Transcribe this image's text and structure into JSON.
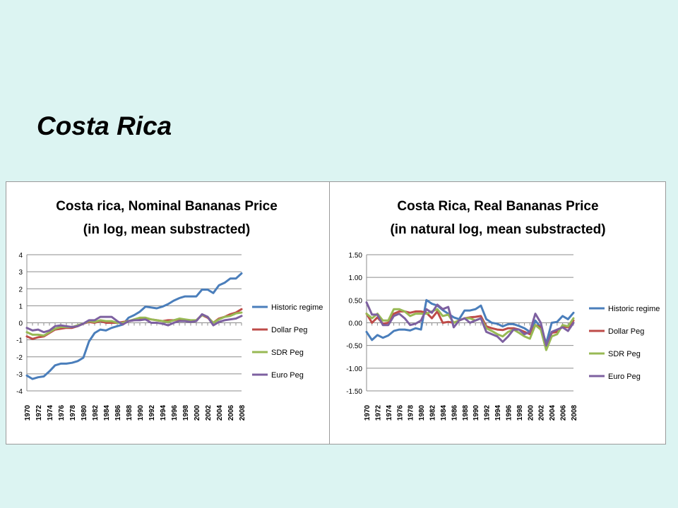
{
  "slide": {
    "title": "Costa Rica"
  },
  "chart_data": [
    {
      "type": "line",
      "title": "Costa rica, Nominal Bananas Price",
      "subtitle": "(in log, mean substracted)",
      "xlabel": "",
      "ylabel": "",
      "ylim": [
        -4,
        4
      ],
      "yticks": [
        4,
        3,
        2,
        1,
        0,
        -1,
        -2,
        -3,
        -4
      ],
      "ytick_labels": [
        "4",
        "3",
        "2",
        "1",
        "0",
        "-1",
        "-2",
        "-3",
        "-4"
      ],
      "x": [
        1970,
        1971,
        1972,
        1973,
        1974,
        1975,
        1976,
        1977,
        1978,
        1979,
        1980,
        1981,
        1982,
        1983,
        1984,
        1985,
        1986,
        1987,
        1988,
        1989,
        1990,
        1991,
        1992,
        1993,
        1994,
        1995,
        1996,
        1997,
        1998,
        1999,
        2000,
        2001,
        2002,
        2003,
        2004,
        2005,
        2006,
        2007,
        2008
      ],
      "xtick_labels": [
        "1970",
        "1972",
        "1974",
        "1976",
        "1978",
        "1980",
        "1982",
        "1984",
        "1986",
        "1988",
        "1990",
        "1992",
        "1994",
        "1996",
        "1998",
        "2000",
        "2002",
        "2004",
        "2006",
        "2008"
      ],
      "grid": "horizontal",
      "legend_position": "right",
      "series": [
        {
          "name": "Historic regime",
          "color": "#4a7ebb",
          "values": [
            -3.1,
            -3.3,
            -3.2,
            -3.15,
            -2.85,
            -2.5,
            -2.4,
            -2.4,
            -2.35,
            -2.25,
            -2.05,
            -1.1,
            -0.6,
            -0.4,
            -0.45,
            -0.3,
            -0.2,
            -0.1,
            0.3,
            0.45,
            0.65,
            0.95,
            0.9,
            0.85,
            0.95,
            1.1,
            1.3,
            1.45,
            1.55,
            1.55,
            1.55,
            1.95,
            1.95,
            1.75,
            2.2,
            2.35,
            2.6,
            2.6,
            2.9
          ]
        },
        {
          "name": "Dollar Peg",
          "color": "#be4b48",
          "values": [
            -0.8,
            -0.95,
            -0.85,
            -0.8,
            -0.6,
            -0.4,
            -0.35,
            -0.3,
            -0.3,
            -0.2,
            -0.05,
            0.05,
            0.0,
            0.1,
            0.0,
            0.0,
            0.0,
            0.05,
            0.1,
            0.15,
            0.2,
            0.25,
            0.2,
            0.15,
            0.1,
            0.15,
            0.15,
            0.2,
            0.15,
            0.1,
            0.15,
            0.45,
            0.3,
            0.0,
            0.25,
            0.35,
            0.5,
            0.6,
            0.8
          ]
        },
        {
          "name": "SDR Peg",
          "color": "#98b954",
          "values": [
            -0.55,
            -0.7,
            -0.7,
            -0.75,
            -0.55,
            -0.35,
            -0.25,
            -0.25,
            -0.25,
            -0.15,
            -0.05,
            0.1,
            0.05,
            0.15,
            0.1,
            0.1,
            0.0,
            0.0,
            0.1,
            0.2,
            0.3,
            0.3,
            0.2,
            0.15,
            0.1,
            0.05,
            0.15,
            0.25,
            0.2,
            0.15,
            0.15,
            0.45,
            0.35,
            0.0,
            0.2,
            0.35,
            0.4,
            0.55,
            0.6
          ]
        },
        {
          "name": "Euro Peg",
          "color": "#7d60a0",
          "values": [
            -0.3,
            -0.45,
            -0.4,
            -0.55,
            -0.45,
            -0.2,
            -0.15,
            -0.2,
            -0.25,
            -0.2,
            -0.05,
            0.15,
            0.15,
            0.35,
            0.35,
            0.35,
            0.1,
            -0.1,
            0.1,
            0.15,
            0.15,
            0.2,
            0.0,
            0.0,
            -0.05,
            -0.15,
            0.0,
            0.1,
            0.1,
            0.05,
            0.1,
            0.5,
            0.35,
            -0.15,
            0.05,
            0.15,
            0.2,
            0.25,
            0.4
          ]
        }
      ]
    },
    {
      "type": "line",
      "title": "Costa Rica, Real Bananas Price",
      "subtitle": "(in natural log, mean substracted)",
      "xlabel": "",
      "ylabel": "",
      "ylim": [
        -1.5,
        1.5
      ],
      "yticks": [
        1.5,
        1.0,
        0.5,
        0.0,
        -0.5,
        -1.0,
        -1.5
      ],
      "ytick_labels": [
        "1.50",
        "1.00",
        "0.50",
        "0.00",
        "-0.50",
        "-1.00",
        "-1.50"
      ],
      "x": [
        1970,
        1971,
        1972,
        1973,
        1974,
        1975,
        1976,
        1977,
        1978,
        1979,
        1980,
        1981,
        1982,
        1983,
        1984,
        1985,
        1986,
        1987,
        1988,
        1989,
        1990,
        1991,
        1992,
        1993,
        1994,
        1995,
        1996,
        1997,
        1998,
        1999,
        2000,
        2001,
        2002,
        2003,
        2004,
        2005,
        2006,
        2007,
        2008
      ],
      "xtick_labels": [
        "1970",
        "1972",
        "1974",
        "1976",
        "1978",
        "1980",
        "1982",
        "1984",
        "1986",
        "1988",
        "1990",
        "1992",
        "1994",
        "1996",
        "1998",
        "2000",
        "2002",
        "2004",
        "2006",
        "2008"
      ],
      "grid": "horizontal",
      "legend_position": "right",
      "series": [
        {
          "name": "Historic regime",
          "color": "#4a7ebb",
          "values": [
            -0.2,
            -0.38,
            -0.27,
            -0.33,
            -0.28,
            -0.18,
            -0.15,
            -0.15,
            -0.17,
            -0.12,
            -0.15,
            0.5,
            0.42,
            0.38,
            0.28,
            0.2,
            0.12,
            0.08,
            0.27,
            0.27,
            0.3,
            0.38,
            0.08,
            0.0,
            -0.02,
            -0.08,
            -0.03,
            -0.03,
            -0.07,
            -0.12,
            -0.2,
            0.05,
            -0.1,
            -0.45,
            0.0,
            0.02,
            0.15,
            0.08,
            0.22
          ]
        },
        {
          "name": "Dollar Peg",
          "color": "#be4b48",
          "values": [
            0.2,
            0.0,
            0.12,
            -0.02,
            0.0,
            0.2,
            0.25,
            0.25,
            0.22,
            0.25,
            0.25,
            0.22,
            0.1,
            0.25,
            0.0,
            0.02,
            0.0,
            0.05,
            0.1,
            0.12,
            0.13,
            0.15,
            -0.08,
            -0.12,
            -0.15,
            -0.16,
            -0.12,
            -0.12,
            -0.15,
            -0.2,
            -0.25,
            -0.05,
            -0.1,
            -0.55,
            -0.22,
            -0.2,
            -0.08,
            -0.1,
            0.05
          ]
        },
        {
          "name": "SDR Peg",
          "color": "#98b954",
          "values": [
            0.2,
            0.1,
            0.2,
            0.05,
            0.05,
            0.3,
            0.3,
            0.25,
            0.15,
            0.2,
            0.2,
            0.2,
            0.25,
            0.3,
            0.15,
            0.18,
            0.0,
            0.05,
            0.1,
            0.1,
            0.05,
            0.1,
            -0.12,
            -0.18,
            -0.25,
            -0.3,
            -0.2,
            -0.15,
            -0.22,
            -0.3,
            -0.35,
            -0.05,
            -0.15,
            -0.6,
            -0.3,
            -0.25,
            -0.05,
            -0.08,
            0.1
          ]
        },
        {
          "name": "Euro Peg",
          "color": "#7d60a0",
          "values": [
            0.45,
            0.18,
            0.18,
            -0.05,
            -0.05,
            0.15,
            0.2,
            0.1,
            -0.05,
            -0.02,
            0.05,
            0.3,
            0.22,
            0.4,
            0.3,
            0.35,
            -0.1,
            0.05,
            0.1,
            0.0,
            0.05,
            0.1,
            -0.2,
            -0.25,
            -0.3,
            -0.42,
            -0.3,
            -0.15,
            -0.15,
            -0.25,
            -0.2,
            0.2,
            0.0,
            -0.5,
            -0.2,
            -0.15,
            -0.1,
            -0.18,
            0.0
          ]
        }
      ]
    }
  ]
}
